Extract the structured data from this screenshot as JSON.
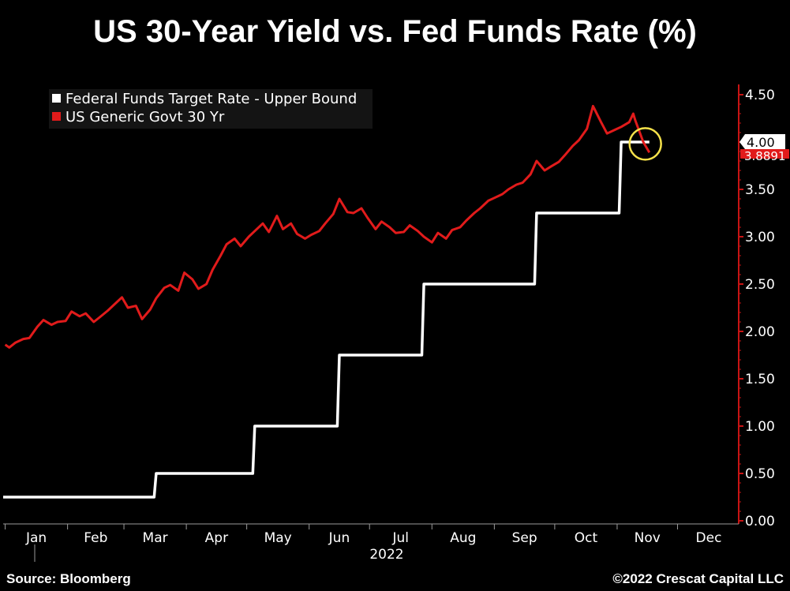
{
  "title": "US 30-Year Yield vs. Fed Funds Rate (%)",
  "footer": {
    "source": "Source: Bloomberg",
    "copyright": "©2022 Crescat Capital LLC"
  },
  "colors": {
    "background": "#000000",
    "fed_funds": "#ffffff",
    "yield_30y": "#e11b1b",
    "highlight_circle": "#f5e14a"
  },
  "chart_data": {
    "type": "line",
    "title": "US 30-Year Yield vs. Fed Funds Rate (%)",
    "xlabel": "2022",
    "ylabel": "",
    "x_ticks": [
      "Jan",
      "Feb",
      "Mar",
      "Apr",
      "May",
      "Jun",
      "Jul",
      "Aug",
      "Sep",
      "Oct",
      "Nov",
      "Dec"
    ],
    "y_ticks": [
      "4.50",
      "4.00",
      "3.50",
      "3.00",
      "2.50",
      "2.00",
      "1.50",
      "1.00",
      "0.50",
      "0.00"
    ],
    "ylim": [
      0,
      4.5
    ],
    "xlim": [
      "2021-12-31",
      "2022-12-31"
    ],
    "grid": false,
    "legend_position": "top-left",
    "last_value_labels": [
      {
        "series": "Federal Funds Target Rate - Upper Bound",
        "label": "4.00"
      },
      {
        "series": "US Generic Govt 30 Yr",
        "label": "3.8891"
      }
    ],
    "series": [
      {
        "name": "Federal Funds Target Rate - Upper Bound",
        "color": "#ffffff",
        "step": true,
        "points": [
          [
            "2021-12-31",
            0.25
          ],
          [
            "2022-03-16",
            0.25
          ],
          [
            "2022-03-17",
            0.5
          ],
          [
            "2022-05-04",
            0.5
          ],
          [
            "2022-05-05",
            1.0
          ],
          [
            "2022-06-15",
            1.0
          ],
          [
            "2022-06-16",
            1.75
          ],
          [
            "2022-07-27",
            1.75
          ],
          [
            "2022-07-28",
            2.5
          ],
          [
            "2022-09-21",
            2.5
          ],
          [
            "2022-09-22",
            3.25
          ],
          [
            "2022-11-02",
            3.25
          ],
          [
            "2022-11-03",
            4.0
          ],
          [
            "2022-11-17",
            4.0
          ]
        ]
      },
      {
        "name": "US Generic Govt 30 Yr",
        "color": "#e11b1b",
        "step": false,
        "points": [
          [
            "2022-01-01",
            1.86
          ],
          [
            "2022-01-03",
            1.83
          ],
          [
            "2022-01-06",
            1.88
          ],
          [
            "2022-01-10",
            1.92
          ],
          [
            "2022-01-13",
            1.93
          ],
          [
            "2022-01-17",
            2.05
          ],
          [
            "2022-01-20",
            2.12
          ],
          [
            "2022-01-24",
            2.07
          ],
          [
            "2022-01-27",
            2.1
          ],
          [
            "2022-01-31",
            2.11
          ],
          [
            "2022-02-03",
            2.21
          ],
          [
            "2022-02-07",
            2.16
          ],
          [
            "2022-02-10",
            2.19
          ],
          [
            "2022-02-14",
            2.1
          ],
          [
            "2022-02-17",
            2.15
          ],
          [
            "2022-02-21",
            2.22
          ],
          [
            "2022-02-24",
            2.28
          ],
          [
            "2022-02-28",
            2.36
          ],
          [
            "2022-03-03",
            2.25
          ],
          [
            "2022-03-07",
            2.27
          ],
          [
            "2022-03-10",
            2.13
          ],
          [
            "2022-03-14",
            2.23
          ],
          [
            "2022-03-17",
            2.35
          ],
          [
            "2022-03-21",
            2.46
          ],
          [
            "2022-03-24",
            2.49
          ],
          [
            "2022-03-28",
            2.43
          ],
          [
            "2022-03-31",
            2.62
          ],
          [
            "2022-04-04",
            2.55
          ],
          [
            "2022-04-07",
            2.45
          ],
          [
            "2022-04-11",
            2.5
          ],
          [
            "2022-04-14",
            2.65
          ],
          [
            "2022-04-18",
            2.8
          ],
          [
            "2022-04-21",
            2.92
          ],
          [
            "2022-04-25",
            2.98
          ],
          [
            "2022-04-28",
            2.9
          ],
          [
            "2022-05-02",
            3.0
          ],
          [
            "2022-05-05",
            3.06
          ],
          [
            "2022-05-09",
            3.14
          ],
          [
            "2022-05-12",
            3.05
          ],
          [
            "2022-05-16",
            3.22
          ],
          [
            "2022-05-19",
            3.08
          ],
          [
            "2022-05-23",
            3.14
          ],
          [
            "2022-05-26",
            3.03
          ],
          [
            "2022-05-30",
            2.98
          ],
          [
            "2022-06-02",
            3.02
          ],
          [
            "2022-06-06",
            3.06
          ],
          [
            "2022-06-09",
            3.14
          ],
          [
            "2022-06-13",
            3.24
          ],
          [
            "2022-06-16",
            3.4
          ],
          [
            "2022-06-20",
            3.26
          ],
          [
            "2022-06-23",
            3.25
          ],
          [
            "2022-06-27",
            3.3
          ],
          [
            "2022-06-30",
            3.2
          ],
          [
            "2022-07-04",
            3.08
          ],
          [
            "2022-07-07",
            3.16
          ],
          [
            "2022-07-11",
            3.1
          ],
          [
            "2022-07-14",
            3.04
          ],
          [
            "2022-07-18",
            3.05
          ],
          [
            "2022-07-21",
            3.12
          ],
          [
            "2022-07-25",
            3.06
          ],
          [
            "2022-07-28",
            3.0
          ],
          [
            "2022-08-01",
            2.94
          ],
          [
            "2022-08-04",
            3.04
          ],
          [
            "2022-08-08",
            2.98
          ],
          [
            "2022-08-11",
            3.07
          ],
          [
            "2022-08-15",
            3.1
          ],
          [
            "2022-08-18",
            3.17
          ],
          [
            "2022-08-22",
            3.25
          ],
          [
            "2022-08-25",
            3.3
          ],
          [
            "2022-08-29",
            3.38
          ],
          [
            "2022-09-01",
            3.41
          ],
          [
            "2022-09-05",
            3.45
          ],
          [
            "2022-09-08",
            3.5
          ],
          [
            "2022-09-12",
            3.55
          ],
          [
            "2022-09-15",
            3.57
          ],
          [
            "2022-09-19",
            3.66
          ],
          [
            "2022-09-22",
            3.8
          ],
          [
            "2022-09-26",
            3.7
          ],
          [
            "2022-09-29",
            3.74
          ],
          [
            "2022-10-03",
            3.79
          ],
          [
            "2022-10-06",
            3.86
          ],
          [
            "2022-10-10",
            3.96
          ],
          [
            "2022-10-13",
            4.02
          ],
          [
            "2022-10-17",
            4.14
          ],
          [
            "2022-10-20",
            4.38
          ],
          [
            "2022-10-24",
            4.21
          ],
          [
            "2022-10-27",
            4.09
          ],
          [
            "2022-10-31",
            4.13
          ],
          [
            "2022-11-03",
            4.16
          ],
          [
            "2022-11-07",
            4.21
          ],
          [
            "2022-11-09",
            4.3
          ],
          [
            "2022-11-10",
            4.23
          ],
          [
            "2022-11-14",
            4.0
          ],
          [
            "2022-11-17",
            3.89
          ]
        ]
      }
    ]
  }
}
